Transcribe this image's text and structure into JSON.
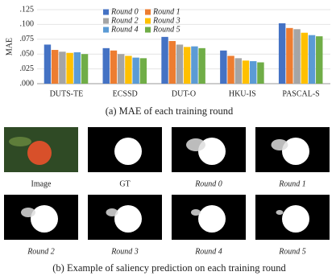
{
  "chart_data": {
    "type": "bar",
    "y_label": "MAE",
    "categories": [
      "DUTS-TE",
      "ECSSD",
      "DUT-O",
      "HKU-IS",
      "PASCAL-S"
    ],
    "series": [
      {
        "name": "Round 0",
        "color": "#4472c4",
        "values": [
          0.066,
          0.06,
          0.079,
          0.056,
          0.102
        ]
      },
      {
        "name": "Round 1",
        "color": "#ed7d31",
        "values": [
          0.057,
          0.056,
          0.072,
          0.047,
          0.094
        ]
      },
      {
        "name": "Round 2",
        "color": "#a5a5a5",
        "values": [
          0.054,
          0.05,
          0.066,
          0.043,
          0.092
        ]
      },
      {
        "name": "Round 3",
        "color": "#ffc000",
        "values": [
          0.052,
          0.047,
          0.062,
          0.039,
          0.086
        ]
      },
      {
        "name": "Round 4",
        "color": "#5b9bd5",
        "values": [
          0.053,
          0.044,
          0.063,
          0.038,
          0.082
        ]
      },
      {
        "name": "Round 5",
        "color": "#70ad47",
        "values": [
          0.05,
          0.043,
          0.06,
          0.036,
          0.08
        ]
      }
    ],
    "ylim": [
      0,
      0.125
    ],
    "yticks": [
      {
        "value": 0,
        "label": ".000"
      },
      {
        "value": 0.025,
        "label": ".025"
      },
      {
        "value": 0.05,
        "label": ".050"
      },
      {
        "value": 0.075,
        "label": ".075"
      },
      {
        "value": 0.1,
        "label": ".100"
      },
      {
        "value": 0.125,
        "label": ".125"
      }
    ],
    "grid": true,
    "legend": "top-left",
    "caption": "(a) MAE of each training round"
  },
  "figure_b": {
    "labels": [
      "Image",
      "GT",
      "Round 0",
      "Round 1",
      "Round 2",
      "Round 3",
      "Round 4",
      "Round 5"
    ],
    "caption": "(b) Example of saliency prediction on each training round"
  }
}
